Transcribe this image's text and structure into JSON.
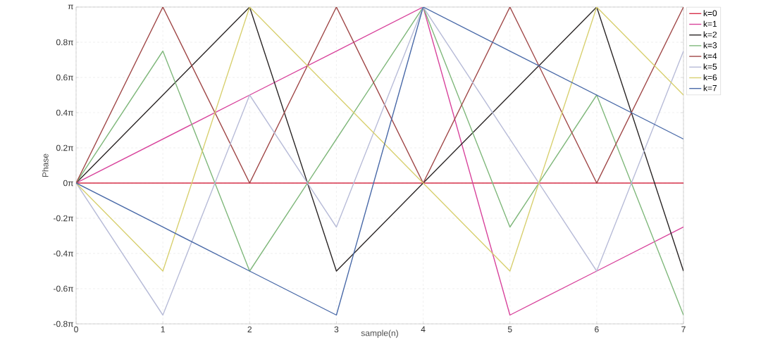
{
  "chart_data": {
    "type": "line",
    "xlabel": "sample(n)",
    "ylabel": "Phase",
    "x": [
      0,
      1,
      2,
      3,
      4,
      5,
      6,
      7
    ],
    "series": [
      {
        "name": "k=0",
        "color": "#d6304a",
        "values": [
          0,
          0,
          0,
          0,
          0,
          0,
          0,
          0
        ]
      },
      {
        "name": "k=1",
        "color": "#d8449c",
        "values": [
          0,
          0.7854,
          1.5708,
          2.3562,
          3.1416,
          -2.3562,
          -1.5708,
          -0.7854
        ]
      },
      {
        "name": "k=2",
        "color": "#2b2626",
        "values": [
          0,
          1.5708,
          3.1416,
          -1.5708,
          0,
          1.5708,
          3.1416,
          -1.5708
        ]
      },
      {
        "name": "k=3",
        "color": "#80b87c",
        "values": [
          0,
          2.3562,
          -1.5708,
          0.7854,
          3.1416,
          -0.7854,
          1.5708,
          -2.3562
        ]
      },
      {
        "name": "k=4",
        "color": "#a04848",
        "values": [
          0,
          3.1416,
          0,
          3.1416,
          0,
          3.1416,
          0,
          3.1416
        ]
      },
      {
        "name": "k=5",
        "color": "#b8bcd8",
        "values": [
          0,
          -2.3562,
          1.5708,
          -0.7854,
          3.1416,
          0.7854,
          -1.5708,
          2.3562
        ]
      },
      {
        "name": "k=6",
        "color": "#d8d070",
        "values": [
          0,
          -1.5708,
          3.1416,
          1.5708,
          0,
          -1.5708,
          3.1416,
          1.5708
        ]
      },
      {
        "name": "k=7",
        "color": "#4a6aa8",
        "values": [
          0,
          -0.7854,
          -1.5708,
          -2.3562,
          3.1416,
          2.3562,
          1.5708,
          0.7854
        ]
      }
    ],
    "xlim": [
      0,
      7
    ],
    "ylim": [
      -2.5133,
      3.1416
    ],
    "xticks": [
      0,
      1,
      2,
      3,
      4,
      5,
      6,
      7
    ],
    "yticks": [
      {
        "value": -2.5133,
        "label": "-0.8π"
      },
      {
        "value": -1.885,
        "label": "-0.6π"
      },
      {
        "value": -1.2566,
        "label": "-0.4π"
      },
      {
        "value": -0.6283,
        "label": "-0.2π"
      },
      {
        "value": 0,
        "label": "0π"
      },
      {
        "value": 0.6283,
        "label": "0.2π"
      },
      {
        "value": 1.2566,
        "label": "0.4π"
      },
      {
        "value": 1.885,
        "label": "0.6π"
      },
      {
        "value": 2.5133,
        "label": "0.8π"
      },
      {
        "value": 3.1416,
        "label": "π"
      }
    ],
    "grid": true,
    "legend": "top right",
    "marker": "none",
    "line_style": "solid"
  }
}
